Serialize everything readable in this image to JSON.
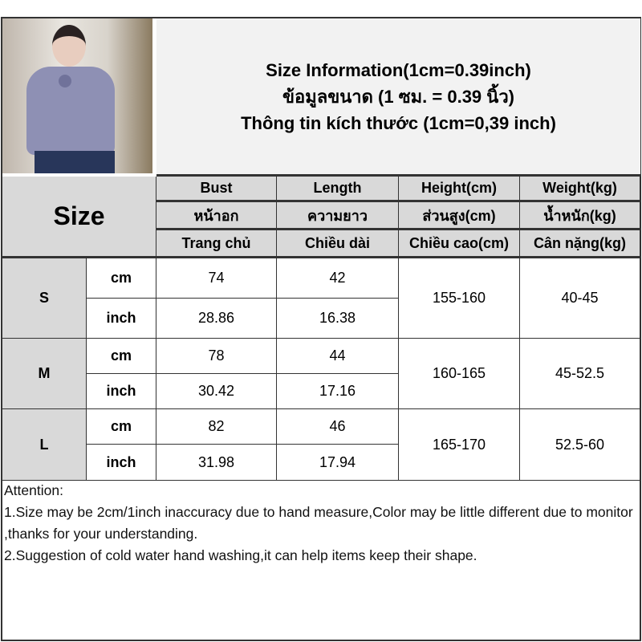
{
  "title": {
    "line1": "Size Information(1cm=0.39inch)",
    "line2": "ข้อมูลขนาด (1 ซม. = 0.39 นิ้ว)",
    "line3": "Thông tin kích thước (1cm=0,39 inch)"
  },
  "size_label": "Size",
  "headers": [
    [
      "Bust",
      "หน้าอก",
      "Trang chủ"
    ],
    [
      "Length",
      "ความยาว",
      "Chiều dài"
    ],
    [
      "Height(cm)",
      "ส่วนสูง(cm)",
      "Chiều cao(cm)"
    ],
    [
      "Weight(kg)",
      "น้ำหนัก(kg)",
      "Cân nặng(kg)"
    ]
  ],
  "rows": [
    {
      "size": "S",
      "cm_label": "cm",
      "inch_label": "inch",
      "bust_cm": "74",
      "length_cm": "42",
      "bust_in": "28.86",
      "length_in": "16.38",
      "height": "155-160",
      "weight": "40-45"
    },
    {
      "size": "M",
      "cm_label": "cm",
      "inch_label": "inch",
      "bust_cm": "78",
      "length_cm": "44",
      "bust_in": "30.42",
      "length_in": "17.16",
      "height": "160-165",
      "weight": "45-52.5"
    },
    {
      "size": "L",
      "cm_label": "cm",
      "inch_label": "inch",
      "bust_cm": "82",
      "length_cm": "46",
      "bust_in": "31.98",
      "length_in": "17.94",
      "height": "165-170",
      "weight": "52.5-60"
    }
  ],
  "attention": {
    "heading": "Attention:",
    "note1": "1.Size may be 2cm/1inch inaccuracy due to hand measure,Color may be little different due to monitor ,thanks for your understanding.",
    "note2": "2.Suggestion of cold water hand washing,it can help items keep their shape."
  }
}
